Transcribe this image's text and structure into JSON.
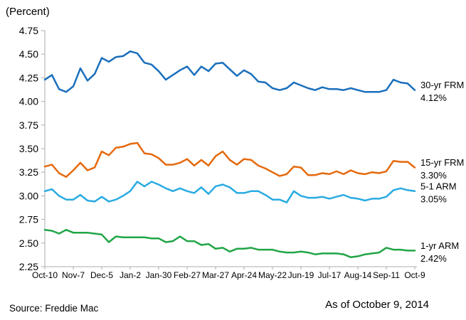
{
  "header": {
    "unit_label": "(Percent)"
  },
  "footer": {
    "source": "Source: Freddie Mac",
    "as_of": "As of October 9, 2014"
  },
  "chart_data": {
    "type": "line",
    "title": "",
    "xlabel": "",
    "ylabel": "(Percent)",
    "ylim": [
      2.25,
      4.75
    ],
    "y_tick_step": 0.25,
    "grid": false,
    "legend_position": "right-of-line-ends",
    "axis_color": "#adadad",
    "label_every": 4,
    "x": [
      "Oct-10",
      "Oct-17",
      "Oct-24",
      "Oct-31",
      "Nov-7",
      "Nov-14",
      "Nov-21",
      "Nov-27",
      "Dec-5",
      "Dec-12",
      "Dec-19",
      "Dec-26",
      "Jan-2",
      "Jan-9",
      "Jan-16",
      "Jan-23",
      "Jan-30",
      "Feb-6",
      "Feb-13",
      "Feb-20",
      "Feb-27",
      "Mar-6",
      "Mar-13",
      "Mar-20",
      "Mar-27",
      "Apr-3",
      "Apr-10",
      "Apr-17",
      "Apr-24",
      "May-1",
      "May-8",
      "May-15",
      "May-22",
      "May-29",
      "Jun-5",
      "Jun-12",
      "Jun-19",
      "Jun-26",
      "Jul-3",
      "Jul-10",
      "Jul-17",
      "Jul-24",
      "Jul-31",
      "Aug-7",
      "Aug-14",
      "Aug-21",
      "Aug-28",
      "Sep-4",
      "Sep-11",
      "Sep-18",
      "Sep-25",
      "Oct-2",
      "Oct-9"
    ],
    "x_tick_labels": [
      "Oct-10",
      "Nov-7",
      "Dec-5",
      "Jan-2",
      "Jan-30",
      "Feb-27",
      "Mar-27",
      "Apr-24",
      "May-22",
      "Jun-19",
      "Jul-17",
      "Aug-14",
      "Sep-11",
      "Oct-9"
    ],
    "series": [
      {
        "name": "30-yr FRM",
        "end_label": "4.12%",
        "color": "#1a6fbc",
        "values": [
          4.23,
          4.28,
          4.13,
          4.1,
          4.16,
          4.35,
          4.22,
          4.29,
          4.46,
          4.42,
          4.47,
          4.48,
          4.53,
          4.51,
          4.41,
          4.39,
          4.32,
          4.23,
          4.28,
          4.33,
          4.37,
          4.28,
          4.37,
          4.32,
          4.4,
          4.41,
          4.34,
          4.27,
          4.33,
          4.29,
          4.21,
          4.2,
          4.14,
          4.12,
          4.14,
          4.2,
          4.17,
          4.14,
          4.12,
          4.15,
          4.13,
          4.13,
          4.12,
          4.14,
          4.12,
          4.1,
          4.1,
          4.1,
          4.12,
          4.23,
          4.2,
          4.19,
          4.12
        ]
      },
      {
        "name": "15-yr FRM",
        "end_label": "3.30%",
        "color": "#e5690e",
        "values": [
          3.31,
          3.33,
          3.24,
          3.2,
          3.27,
          3.35,
          3.27,
          3.3,
          3.47,
          3.43,
          3.51,
          3.52,
          3.55,
          3.56,
          3.45,
          3.44,
          3.4,
          3.33,
          3.33,
          3.35,
          3.39,
          3.32,
          3.38,
          3.32,
          3.42,
          3.47,
          3.38,
          3.33,
          3.39,
          3.38,
          3.32,
          3.29,
          3.25,
          3.21,
          3.23,
          3.31,
          3.3,
          3.22,
          3.22,
          3.24,
          3.23,
          3.26,
          3.23,
          3.27,
          3.24,
          3.23,
          3.25,
          3.24,
          3.26,
          3.37,
          3.36,
          3.36,
          3.3
        ]
      },
      {
        "name": "5-1 ARM",
        "end_label": "3.05%",
        "color": "#29abe2",
        "values": [
          3.05,
          3.07,
          3.0,
          2.96,
          2.96,
          3.01,
          2.95,
          2.94,
          2.99,
          2.94,
          2.96,
          3.0,
          3.05,
          3.15,
          3.1,
          3.15,
          3.12,
          3.08,
          3.05,
          3.08,
          3.05,
          3.03,
          3.09,
          3.02,
          3.1,
          3.12,
          3.09,
          3.03,
          3.03,
          3.05,
          3.05,
          3.01,
          2.96,
          2.96,
          2.93,
          3.05,
          3.0,
          2.98,
          2.98,
          2.99,
          2.97,
          2.99,
          3.01,
          2.98,
          2.97,
          2.95,
          2.97,
          2.97,
          2.99,
          3.06,
          3.08,
          3.06,
          3.05
        ]
      },
      {
        "name": "1-yr ARM",
        "end_label": "2.42%",
        "color": "#21a546",
        "values": [
          2.64,
          2.63,
          2.6,
          2.64,
          2.61,
          2.61,
          2.61,
          2.6,
          2.59,
          2.51,
          2.57,
          2.56,
          2.56,
          2.56,
          2.56,
          2.55,
          2.55,
          2.51,
          2.52,
          2.57,
          2.52,
          2.52,
          2.48,
          2.49,
          2.44,
          2.45,
          2.41,
          2.44,
          2.44,
          2.45,
          2.43,
          2.43,
          2.43,
          2.41,
          2.4,
          2.4,
          2.41,
          2.4,
          2.38,
          2.39,
          2.39,
          2.39,
          2.38,
          2.35,
          2.36,
          2.38,
          2.39,
          2.4,
          2.45,
          2.43,
          2.43,
          2.42,
          2.42
        ]
      }
    ]
  }
}
